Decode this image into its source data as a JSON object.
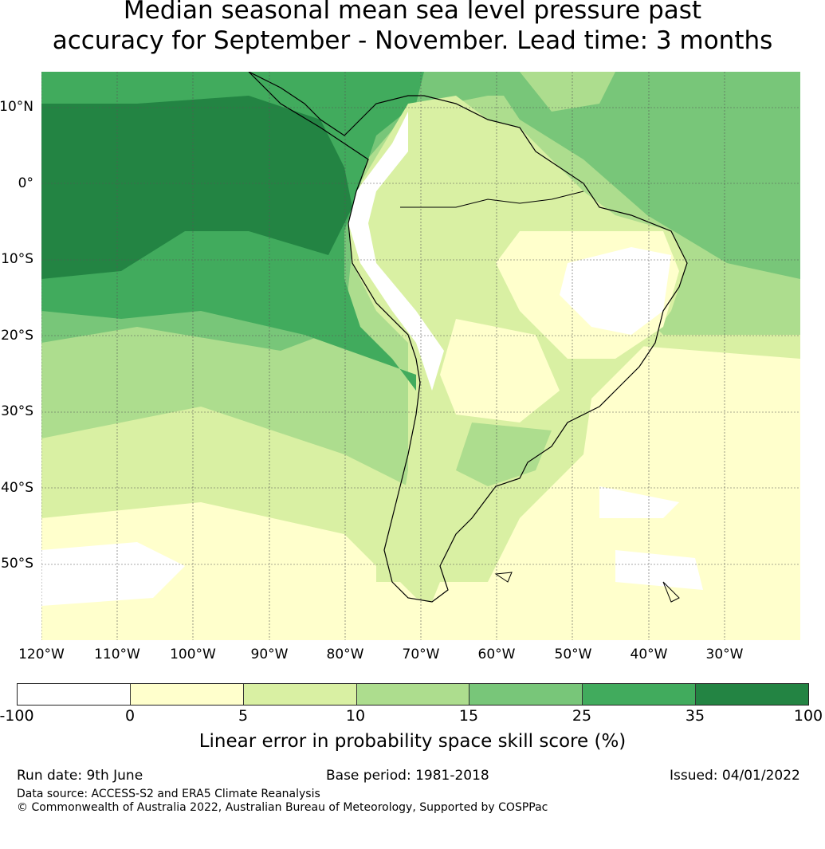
{
  "title_line1": "Median seasonal mean sea level pressure past",
  "title_line2": "accuracy for September - November. Lead time: 3 months",
  "lat_labels": [
    "10°N",
    "0°",
    "10°S",
    "20°S",
    "30°S",
    "40°S",
    "50°S"
  ],
  "lon_labels": [
    "120°W",
    "110°W",
    "100°W",
    "90°W",
    "80°W",
    "70°W",
    "60°W",
    "50°W",
    "40°W",
    "30°W"
  ],
  "colorbar": {
    "ticks": [
      "-100",
      "0",
      "5",
      "10",
      "15",
      "25",
      "35",
      "100"
    ],
    "colors": [
      "#ffffff",
      "#ffffcc",
      "#d9f0a3",
      "#addd8e",
      "#78c679",
      "#41ab5d",
      "#238443"
    ],
    "label": "Linear error in probability space skill score (%)"
  },
  "footer": {
    "run_date": "Run date: 9th June",
    "base_period": "Base period: 1981-2018",
    "issued": "Issued: 04/01/2022",
    "data_source": "Data source: ACCESS-S2 and ERA5 Climate Reanalysis",
    "copyright": "© Commonwealth of Australia 2022, Australian Bureau of Meteorology, Supported by COSPPac"
  }
}
